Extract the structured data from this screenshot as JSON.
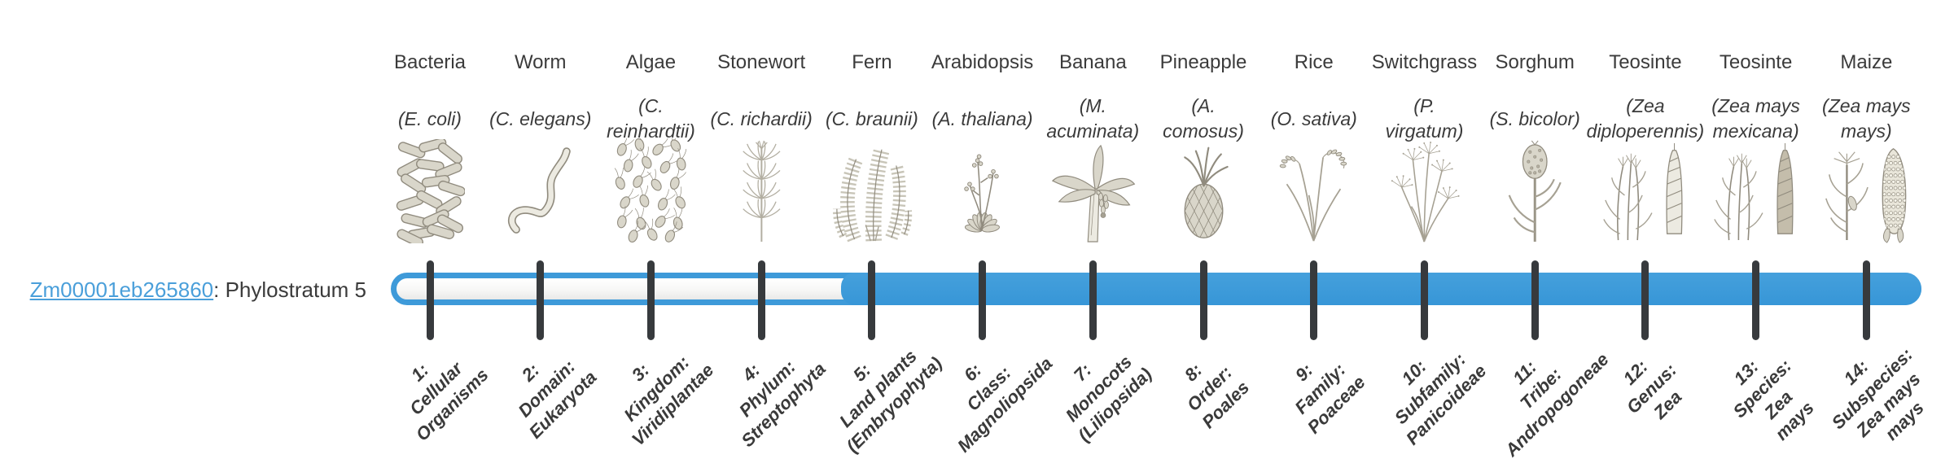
{
  "gene": {
    "id": "Zm00001eb265860",
    "suffix": ": Phylostratum 5",
    "phylostratum": 5
  },
  "timeline": {
    "total_strata": 14,
    "filled_from_stratum": 5,
    "bar_color": "#3e9ad9",
    "track_fill_color": "#f4f4f2",
    "tick_color": "#373a3d",
    "link_color": "#4a9fda",
    "text_color": "#3b3b3b"
  },
  "organisms": [
    {
      "stratum": 1,
      "name": "Bacteria",
      "species": "(E. coli)",
      "icon": "bacteria-icon",
      "stratum_label": "1:\nCellular\nOrganisms"
    },
    {
      "stratum": 2,
      "name": "Worm",
      "species": "(C. elegans)",
      "icon": "worm-icon",
      "stratum_label": "2:\nDomain:\nEukaryota"
    },
    {
      "stratum": 3,
      "name": "Algae",
      "species": "(C.\nreinhardtii)",
      "icon": "algae-icon",
      "stratum_label": "3:\nKingdom:\nViridiplantae"
    },
    {
      "stratum": 4,
      "name": "Stonewort",
      "species": "(C. richardii)",
      "icon": "stonewort-icon",
      "stratum_label": "4:\nPhylum:\nStreptophyta"
    },
    {
      "stratum": 5,
      "name": "Fern",
      "species": "(C. braunii)",
      "icon": "fern-icon",
      "stratum_label": "5:\nLand plants\n(Embryophyta)"
    },
    {
      "stratum": 6,
      "name": "Arabidopsis",
      "species": "(A. thaliana)",
      "icon": "arabidopsis-icon",
      "stratum_label": "6:\nClass:\nMagnoliopsida"
    },
    {
      "stratum": 7,
      "name": "Banana",
      "species": "(M.\nacuminata)",
      "icon": "banana-icon",
      "stratum_label": "7:\nMonocots\n(Liliopsida)"
    },
    {
      "stratum": 8,
      "name": "Pineapple",
      "species": "(A.\ncomosus)",
      "icon": "pineapple-icon",
      "stratum_label": "8:\nOrder:\nPoales"
    },
    {
      "stratum": 9,
      "name": "Rice",
      "species": "(O. sativa)",
      "icon": "rice-icon",
      "stratum_label": "9:\nFamily:\nPoaceae"
    },
    {
      "stratum": 10,
      "name": "Switchgrass",
      "species": "(P.\nvirgatum)",
      "icon": "switchgrass-icon",
      "stratum_label": "10:\nSubfamily:\nPanicoideae"
    },
    {
      "stratum": 11,
      "name": "Sorghum",
      "species": "(S. bicolor)",
      "icon": "sorghum-icon",
      "stratum_label": "11:\nTribe:\nAndropogoneae"
    },
    {
      "stratum": 12,
      "name": "Teosinte",
      "species": "(Zea\ndiploperennis)",
      "icon": "teosinte-icon",
      "stratum_label": "12:\nGenus:\nZea"
    },
    {
      "stratum": 13,
      "name": "Teosinte",
      "species": "(Zea mays\nmexicana)",
      "icon": "teosinte-mexicana-icon",
      "stratum_label": "13:\nSpecies:\nZea\nmays"
    },
    {
      "stratum": 14,
      "name": "Maize",
      "species": "(Zea mays\nmays)",
      "icon": "maize-icon",
      "stratum_label": "14:\nSubspecies:\nZea mays\nmays"
    }
  ]
}
